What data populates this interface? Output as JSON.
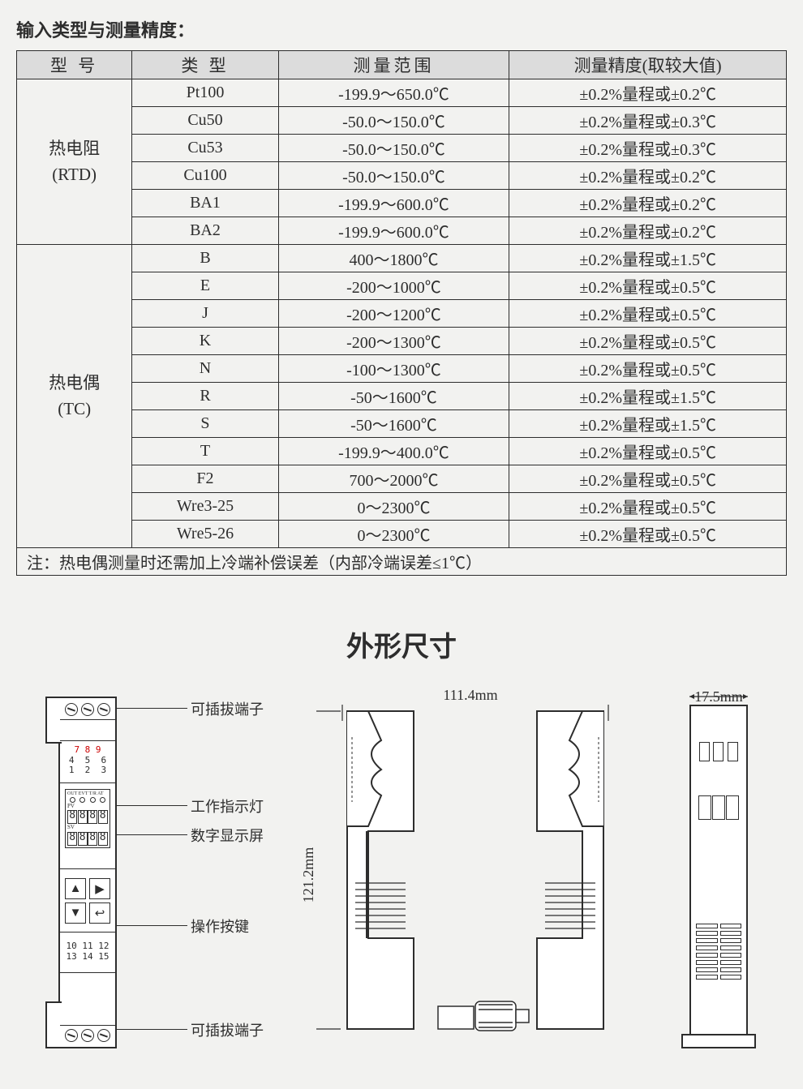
{
  "table_title": "输入类型与测量精度：",
  "columns": [
    "型 号",
    "类 型",
    "测量范围",
    "测量精度(取较大值)"
  ],
  "groups": [
    {
      "label": "热电阻\n(RTD)",
      "rows": [
        {
          "type": "Pt100",
          "range": "-199.9～650.0℃",
          "acc": "±0.2%量程或±0.2℃"
        },
        {
          "type": "Cu50",
          "range": "-50.0～150.0℃",
          "acc": "±0.2%量程或±0.3℃"
        },
        {
          "type": "Cu53",
          "range": "-50.0～150.0℃",
          "acc": "±0.2%量程或±0.3℃"
        },
        {
          "type": "Cu100",
          "range": "-50.0～150.0℃",
          "acc": "±0.2%量程或±0.2℃"
        },
        {
          "type": "BA1",
          "range": "-199.9～600.0℃",
          "acc": "±0.2%量程或±0.2℃"
        },
        {
          "type": "BA2",
          "range": "-199.9～600.0℃",
          "acc": "±0.2%量程或±0.2℃"
        }
      ]
    },
    {
      "label": "热电偶\n(TC)",
      "rows": [
        {
          "type": "B",
          "range": "400～1800℃",
          "acc": "±0.2%量程或±1.5℃"
        },
        {
          "type": "E",
          "range": "-200～1000℃",
          "acc": "±0.2%量程或±0.5℃"
        },
        {
          "type": "J",
          "range": "-200～1200℃",
          "acc": "±0.2%量程或±0.5℃"
        },
        {
          "type": "K",
          "range": "-200～1300℃",
          "acc": "±0.2%量程或±0.5℃"
        },
        {
          "type": "N",
          "range": "-100～1300℃",
          "acc": "±0.2%量程或±0.5℃"
        },
        {
          "type": "R",
          "range": "-50～1600℃",
          "acc": "±0.2%量程或±1.5℃"
        },
        {
          "type": "S",
          "range": "-50～1600℃",
          "acc": "±0.2%量程或±1.5℃"
        },
        {
          "type": "T",
          "range": "-199.9～400.0℃",
          "acc": "±0.2%量程或±0.5℃"
        },
        {
          "type": "F2",
          "range": "700～2000℃",
          "acc": "±0.2%量程或±0.5℃"
        },
        {
          "type": "Wre3-25",
          "range": "0～2300℃",
          "acc": "±0.2%量程或±0.5℃"
        },
        {
          "type": "Wre5-26",
          "range": "0～2300℃",
          "acc": "±0.2%量程或±0.5℃"
        }
      ]
    }
  ],
  "note": "注：热电偶测量时还需加上冷端补偿误差（内部冷端误差≤1℃）",
  "dim_title": "外形尺寸",
  "dims": {
    "width": "111.4mm",
    "height": "121.2mm",
    "depth": "17.5mm"
  },
  "callouts": {
    "top_terminal": "可插拔端子",
    "led": "工作指示灯",
    "display": "数字显示屏",
    "buttons": "操作按键",
    "bottom_terminal": "可插拔端子"
  },
  "front_labels": {
    "top_nums_red": "7  8  9",
    "top_nums": "4  5  6\n1  2  3",
    "disp_top": "OUT EVT T/R AT",
    "pv": "PV",
    "sv": "SV",
    "bot_nums": "10 11 12\n13 14 15"
  },
  "colors": {
    "bg": "#f2f2f0",
    "border": "#2d2d2d",
    "header_bg": "#dcdcdc",
    "red": "#cc0000"
  },
  "col_widths_pct": [
    15,
    19,
    30,
    36
  ]
}
